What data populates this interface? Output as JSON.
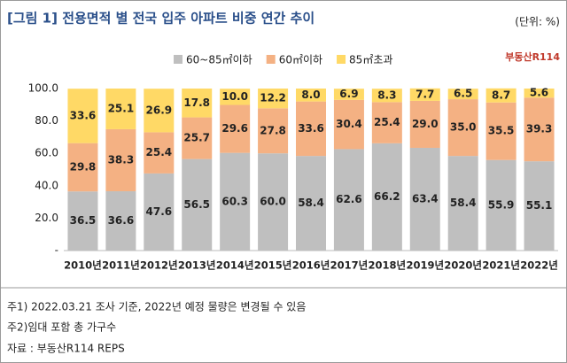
{
  "chart_data": {
    "type": "stacked_bar",
    "title": "[그림 1] 전용면적 별 전국 입주 아파트 비중 연간 추이",
    "unit": "(단위: %)",
    "logo": "부동산R114",
    "categories": [
      "2010년",
      "2011년",
      "2012년",
      "2013년",
      "2014년",
      "2015년",
      "2016년",
      "2017년",
      "2018년",
      "2019년",
      "2020년",
      "2021년",
      "2022년"
    ],
    "series": [
      {
        "name": "60~85㎡이하",
        "color": "#bfbfbf",
        "values": [
          36.5,
          36.6,
          47.6,
          56.5,
          60.3,
          60.0,
          58.4,
          62.6,
          66.2,
          63.4,
          58.4,
          55.9,
          55.1
        ],
        "value_labels": [
          "36.5",
          "36.6",
          "47.6",
          "56.5",
          "60.3",
          "60.0",
          "58.4",
          "62.6",
          "66.2",
          "63.4",
          "58.4",
          "55.9",
          "55.1"
        ]
      },
      {
        "name": "60㎡이하",
        "color": "#f4b183",
        "values": [
          29.8,
          38.3,
          25.4,
          25.7,
          29.6,
          27.8,
          33.6,
          30.4,
          25.4,
          29.0,
          35.0,
          35.5,
          39.3
        ],
        "value_labels": [
          "29.8",
          "38.3",
          "25.4",
          "25.7",
          "29.6",
          "27.8",
          "33.6",
          "30.4",
          "25.4",
          "29.0",
          "35.0",
          "35.5",
          "39.3"
        ]
      },
      {
        "name": "85㎡초과",
        "color": "#ffd966",
        "values": [
          33.6,
          25.1,
          26.9,
          17.8,
          10.0,
          12.2,
          8.0,
          6.9,
          8.3,
          7.7,
          6.5,
          8.7,
          5.6
        ],
        "value_labels": [
          "33.6",
          "25.1",
          "26.9",
          "17.8",
          "10.0",
          "12.2",
          "8.0",
          "6.9",
          "8.3",
          "7.7",
          "6.5",
          "8.7",
          "5.6"
        ]
      }
    ],
    "ylim": [
      0,
      100
    ],
    "yticks": [
      {
        "value": 0,
        "label": "-"
      },
      {
        "value": 20,
        "label": "20.0"
      },
      {
        "value": 40,
        "label": "40.0"
      },
      {
        "value": 60,
        "label": "60.0"
      },
      {
        "value": 80,
        "label": "80.0"
      },
      {
        "value": 100,
        "label": "100.0"
      }
    ],
    "notes": [
      "주1) 2022.03.21 조사 기준, 2022년 예정 물량은 변경될 수 있음",
      "주2)임대 포함 총 가구수",
      "자료 : 부동산R114 REPS"
    ]
  }
}
